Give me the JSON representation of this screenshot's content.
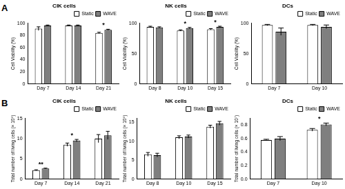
{
  "panel_labels": [
    "A",
    "B"
  ],
  "chart_data": [
    {
      "type": "bar",
      "title": "CIK cells",
      "y_label": "Cell Viability (%)",
      "categories": [
        "Day 7",
        "Day 14",
        "Day 21"
      ],
      "series": [
        {
          "name": "Static",
          "color": "#ffffff",
          "values": [
            91,
            96,
            84
          ],
          "errors": [
            3,
            1,
            1
          ]
        },
        {
          "name": "WAVE",
          "color": "#7f7f7f",
          "values": [
            96,
            96,
            89
          ],
          "errors": [
            1,
            1,
            1
          ]
        }
      ],
      "ylim": [
        0,
        100
      ],
      "yticks": [
        0,
        20,
        40,
        60,
        80,
        100
      ],
      "grid": false,
      "legend": "top-right",
      "annotations": [
        {
          "category": "Day 21",
          "text": "*"
        }
      ]
    },
    {
      "type": "bar",
      "title": "NK cells",
      "y_label": "Cell Viability (%)",
      "categories": [
        "Day 8",
        "Day 10",
        "Day 15"
      ],
      "series": [
        {
          "name": "Static",
          "color": "#ffffff",
          "values": [
            94,
            88,
            90
          ],
          "errors": [
            1,
            1,
            1
          ]
        },
        {
          "name": "WAVE",
          "color": "#7f7f7f",
          "values": [
            93,
            92,
            94
          ],
          "errors": [
            1,
            1,
            1
          ]
        }
      ],
      "ylim": [
        0,
        100
      ],
      "yticks": [
        0,
        50,
        100
      ],
      "grid": false,
      "legend": "top-right",
      "annotations": [
        {
          "category": "Day 10",
          "text": "*"
        },
        {
          "category": "Day 15",
          "text": "*"
        }
      ]
    },
    {
      "type": "bar",
      "title": "DCs",
      "y_label": "Cell Viability (%)",
      "categories": [
        "Day 7",
        "Day 10"
      ],
      "series": [
        {
          "name": "Static",
          "color": "#ffffff",
          "values": [
            97,
            97
          ],
          "errors": [
            1,
            1
          ]
        },
        {
          "name": "WAVE",
          "color": "#7f7f7f",
          "values": [
            86,
            94
          ],
          "errors": [
            6,
            3
          ]
        }
      ],
      "ylim": [
        0,
        100
      ],
      "yticks": [
        0,
        50,
        100
      ],
      "grid": false,
      "legend": "top-right",
      "annotations": []
    },
    {
      "type": "bar",
      "title": "CIK cells",
      "y_label": "Total number of living cells (× 10⁹)",
      "categories": [
        "Day 7",
        "Day 14",
        "Day 21"
      ],
      "series": [
        {
          "name": "Static",
          "color": "#ffffff",
          "values": [
            2.2,
            8.5,
            10
          ],
          "errors": [
            0.1,
            0.4,
            1
          ]
        },
        {
          "name": "WAVE",
          "color": "#7f7f7f",
          "values": [
            2.6,
            9.5,
            10.8
          ],
          "errors": [
            0.1,
            0.3,
            1
          ]
        }
      ],
      "ylim": [
        0,
        15
      ],
      "yticks": [
        0,
        5,
        10,
        15
      ],
      "grid": false,
      "legend": "top-right",
      "annotations": [
        {
          "category": "Day 7",
          "text": "**"
        },
        {
          "category": "Day 14",
          "text": "*"
        }
      ]
    },
    {
      "type": "bar",
      "title": "NK cells",
      "y_label": "Total number of living cells (× 10⁹)",
      "categories": [
        "Day 8",
        "Day 10",
        "Day 15"
      ],
      "series": [
        {
          "name": "Static",
          "color": "#ffffff",
          "values": [
            6.5,
            11,
            13.8
          ],
          "errors": [
            0.5,
            0.4,
            0.4
          ]
        },
        {
          "name": "WAVE",
          "color": "#7f7f7f",
          "values": [
            6.3,
            11.2,
            14.7
          ],
          "errors": [
            0.5,
            0.4,
            0.5
          ]
        }
      ],
      "ylim": [
        0,
        16
      ],
      "yticks": [
        0,
        5,
        10,
        15
      ],
      "grid": false,
      "legend": "top-right",
      "annotations": []
    },
    {
      "type": "bar",
      "title": "DCs",
      "y_label": "Total number of living cells (× 10⁷)",
      "categories": [
        "Day 7",
        "Day 10"
      ],
      "series": [
        {
          "name": "Static",
          "color": "#ffffff",
          "values": [
            0.58,
            0.73
          ],
          "errors": [
            0.01,
            0.02
          ]
        },
        {
          "name": "WAVE",
          "color": "#7f7f7f",
          "values": [
            0.6,
            0.81
          ],
          "errors": [
            0.03,
            0.02
          ]
        }
      ],
      "ylim": [
        0,
        0.9
      ],
      "yticks": [
        {
          "value": 0,
          "label": "0.0"
        },
        0.2,
        0.4,
        0.6,
        0.8
      ],
      "grid": false,
      "legend": "top-right",
      "annotations": [
        {
          "category": "Day 10",
          "text": "*"
        }
      ]
    }
  ]
}
